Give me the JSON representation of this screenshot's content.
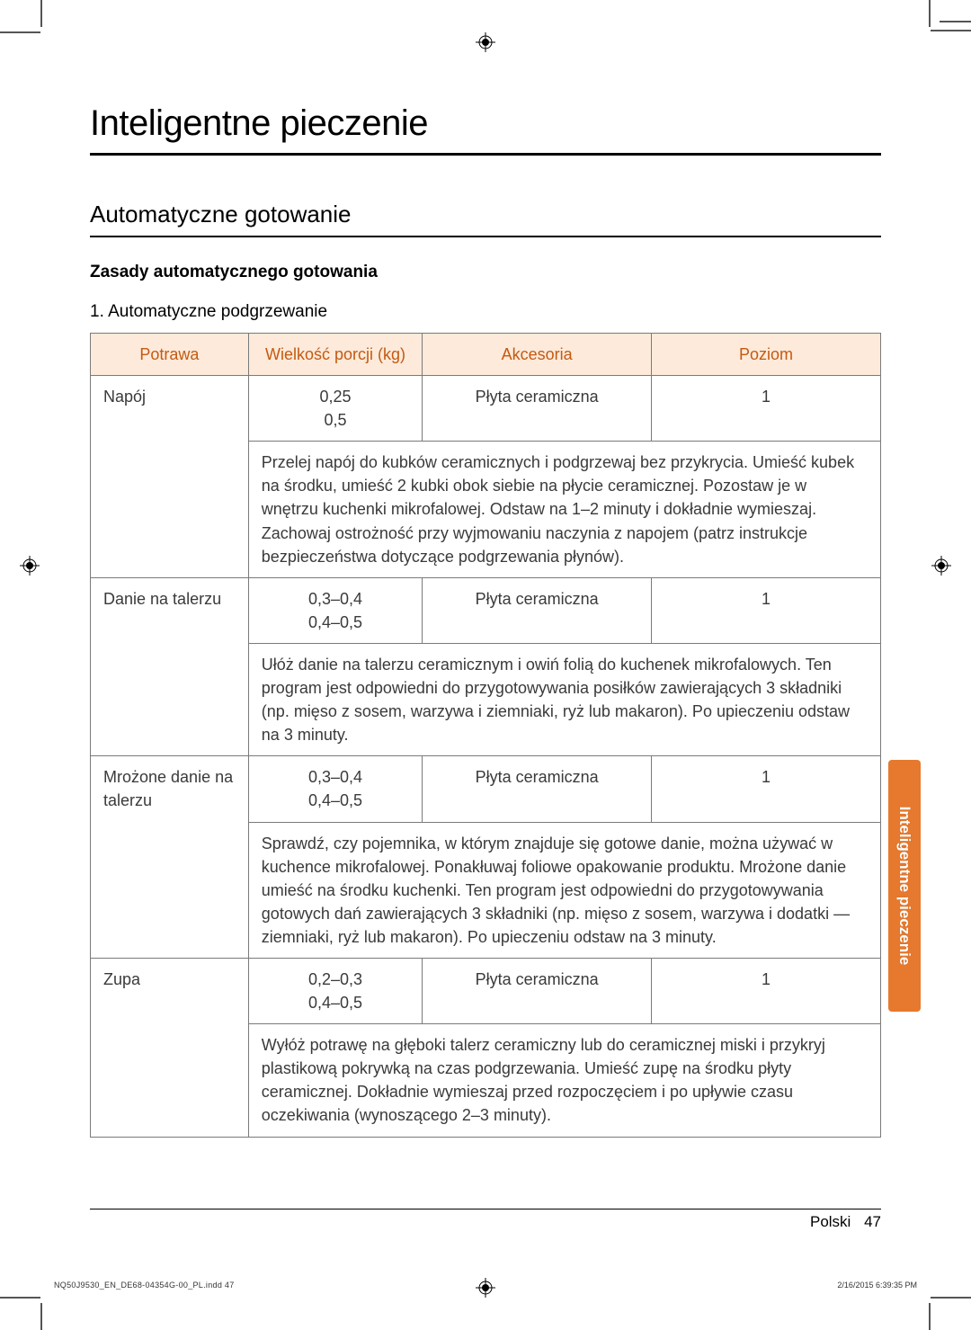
{
  "title": "Inteligentne pieczenie",
  "section": "Automatyczne gotowanie",
  "subheading": "Zasady automatycznego gotowania",
  "list_heading": "1. Automatyczne podgrzewanie",
  "table": {
    "headers": {
      "food": "Potrawa",
      "portion": "Wielkość porcji (kg)",
      "accessory": "Akcesoria",
      "level": "Poziom"
    },
    "rows": [
      {
        "food": "Napój",
        "portion": "0,25\n0,5",
        "accessory": "Płyta ceramiczna",
        "level": "1",
        "desc": "Przelej napój do kubków ceramicznych i podgrzewaj bez przykrycia. Umieść kubek na środku, umieść 2 kubki obok siebie na płycie ceramicznej. Pozostaw je w wnętrzu kuchenki mikrofalowej. Odstaw na 1–2 minuty i dokładnie wymieszaj. Zachowaj ostrożność przy wyjmowaniu naczynia z napojem (patrz instrukcje bezpieczeństwa dotyczące podgrzewania płynów)."
      },
      {
        "food": "Danie na talerzu",
        "portion": "0,3–0,4\n0,4–0,5",
        "accessory": "Płyta ceramiczna",
        "level": "1",
        "desc": "Ułóż danie na talerzu ceramicznym i owiń folią do kuchenek mikrofalowych. Ten program jest odpowiedni do przygotowywania posiłków zawierających 3 składniki (np. mięso z sosem, warzywa i ziemniaki, ryż lub makaron). Po upieczeniu odstaw na 3 minuty."
      },
      {
        "food": "Mrożone danie na talerzu",
        "portion": "0,3–0,4\n0,4–0,5",
        "accessory": "Płyta ceramiczna",
        "level": "1",
        "desc": "Sprawdź, czy pojemnika, w którym znajduje się gotowe danie, można używać w kuchence mikrofalowej. Ponakłuwaj foliowe opakowanie produktu. Mrożone danie umieść na środku kuchenki. Ten program jest odpowiedni do przygotowywania gotowych dań zawierających 3 składniki (np. mięso z sosem, warzywa i dodatki — ziemniaki, ryż lub makaron). Po upieczeniu odstaw na 3 minuty."
      },
      {
        "food": "Zupa",
        "portion": "0,2–0,3\n0,4–0,5",
        "accessory": "Płyta ceramiczna",
        "level": "1",
        "desc": "Wyłóż potrawę na głęboki talerz ceramiczny lub do ceramicznej miski i przykryj plastikową pokrywką na czas podgrzewania. Umieść zupę na środku płyty ceramicznej. Dokładnie wymieszaj przed rozpoczęciem i po upływie czasu oczekiwania (wynoszącego 2–3 minuty)."
      }
    ]
  },
  "side_tab": "Inteligentne pieczenie",
  "footer_lang": "Polski",
  "footer_page": "47",
  "imprint_left": "NQ50J9530_EN_DE68-04354G-00_PL.indd   47",
  "imprint_right": "2/16/2015   6:39:35 PM",
  "colors": {
    "header_bg": "#fdeada",
    "header_text": "#c45a12",
    "border": "#7a7a7a",
    "side_tab_bg": "#e6792d",
    "body_text": "#3a3a3a"
  }
}
